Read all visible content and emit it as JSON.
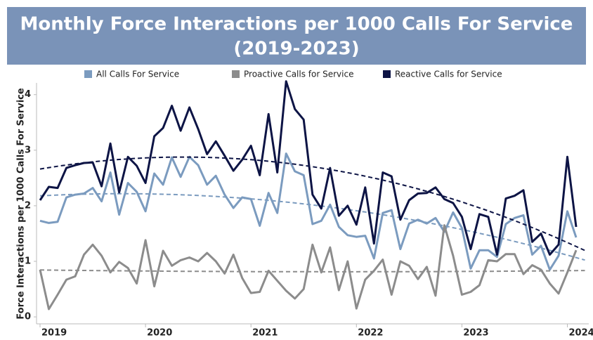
{
  "chart_data": {
    "type": "line",
    "title": "Monthly Force Interactions per 1000 Calls For Service",
    "subtitle": "(2019-2023)",
    "y_label": "Force Interactions per 1000 Calls For Service",
    "categories": [
      "2019",
      null,
      null,
      null,
      null,
      null,
      null,
      null,
      null,
      null,
      null,
      null,
      "2020",
      null,
      null,
      null,
      null,
      null,
      null,
      null,
      null,
      null,
      null,
      null,
      "2021",
      null,
      null,
      null,
      null,
      null,
      null,
      null,
      null,
      null,
      null,
      null,
      "2022",
      null,
      null,
      null,
      null,
      null,
      null,
      null,
      null,
      null,
      null,
      null,
      "2023",
      null,
      null,
      null,
      null,
      null,
      null,
      null,
      null,
      null,
      null,
      null,
      "2024",
      null
    ],
    "series": [
      {
        "name": "All Calls For Service",
        "color": "#7b9bbf",
        "values": [
          1.73,
          1.69,
          1.71,
          2.15,
          2.2,
          2.22,
          2.32,
          2.08,
          2.6,
          1.84,
          2.41,
          2.25,
          1.9,
          2.58,
          2.38,
          2.87,
          2.52,
          2.88,
          2.73,
          2.38,
          2.54,
          2.2,
          1.96,
          2.15,
          2.12,
          1.64,
          2.23,
          1.87,
          2.94,
          2.62,
          2.55,
          1.67,
          1.73,
          2.02,
          1.62,
          1.47,
          1.44,
          1.46,
          1.05,
          1.87,
          1.92,
          1.22,
          1.68,
          1.75,
          1.68,
          1.78,
          1.53,
          1.88,
          1.6,
          0.87,
          1.2,
          1.2,
          1.08,
          1.67,
          1.78,
          1.83,
          1.12,
          1.28,
          0.85,
          1.1,
          1.9,
          1.43
        ]
      },
      {
        "name": "Proactive Calls for Service",
        "color": "#8c8c8c",
        "values": [
          0.85,
          0.14,
          0.4,
          0.67,
          0.73,
          1.12,
          1.3,
          1.1,
          0.8,
          0.99,
          0.88,
          0.6,
          1.38,
          0.55,
          1.19,
          0.92,
          1.02,
          1.07,
          1.0,
          1.15,
          1.0,
          0.78,
          1.12,
          0.7,
          0.43,
          0.45,
          0.83,
          0.65,
          0.47,
          0.33,
          0.5,
          1.3,
          0.8,
          1.25,
          0.48,
          1.0,
          0.15,
          0.67,
          0.83,
          1.03,
          0.4,
          1.0,
          0.92,
          0.68,
          0.9,
          0.38,
          1.65,
          1.1,
          0.4,
          0.45,
          0.57,
          1.02,
          1.0,
          1.13,
          1.13,
          0.77,
          0.93,
          0.85,
          0.6,
          0.42,
          0.8,
          1.2
        ]
      },
      {
        "name": "Reactive Calls for Service",
        "color": "#0d1445",
        "values": [
          2.1,
          2.34,
          2.32,
          2.68,
          2.73,
          2.77,
          2.78,
          2.35,
          3.12,
          2.24,
          2.88,
          2.72,
          2.41,
          3.25,
          3.4,
          3.8,
          3.35,
          3.77,
          3.38,
          2.93,
          3.16,
          2.9,
          2.63,
          2.83,
          3.08,
          2.55,
          3.65,
          2.6,
          4.24,
          3.74,
          3.55,
          2.2,
          1.95,
          2.68,
          1.82,
          2.0,
          1.66,
          2.33,
          1.32,
          2.6,
          2.53,
          1.75,
          2.1,
          2.22,
          2.23,
          2.33,
          2.12,
          2.05,
          1.8,
          1.22,
          1.85,
          1.8,
          1.12,
          2.13,
          2.18,
          2.28,
          1.35,
          1.5,
          1.12,
          1.3,
          2.88,
          1.62
        ]
      }
    ],
    "ylim": [
      -0.1,
      4.3
    ],
    "yticks": [
      0,
      1,
      2,
      3,
      4
    ],
    "trendline": true,
    "grid": false,
    "legend": "top"
  }
}
